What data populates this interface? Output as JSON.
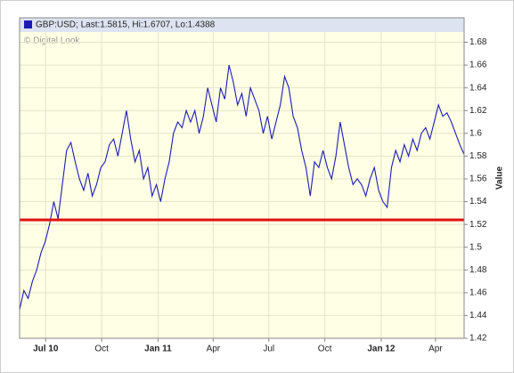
{
  "chart_data": {
    "type": "line",
    "legend": "GBP:USD; Last:1.5815, Hi:1.6707, Lo:1.4388",
    "watermark": "© Digital Look",
    "y_label": "Value",
    "series": [
      {
        "name": "GBP:USD",
        "color": "#1c1cb4",
        "values": [
          1.445,
          1.462,
          1.455,
          1.47,
          1.48,
          1.495,
          1.505,
          1.52,
          1.54,
          1.525,
          1.555,
          1.585,
          1.592,
          1.575,
          1.56,
          1.55,
          1.565,
          1.545,
          1.555,
          1.57,
          1.575,
          1.59,
          1.595,
          1.58,
          1.6,
          1.62,
          1.595,
          1.575,
          1.585,
          1.56,
          1.57,
          1.545,
          1.555,
          1.54,
          1.56,
          1.575,
          1.6,
          1.61,
          1.605,
          1.62,
          1.61,
          1.62,
          1.6,
          1.615,
          1.64,
          1.625,
          1.61,
          1.64,
          1.63,
          1.66,
          1.645,
          1.625,
          1.635,
          1.615,
          1.64,
          1.63,
          1.62,
          1.6,
          1.615,
          1.595,
          1.61,
          1.625,
          1.65,
          1.64,
          1.615,
          1.605,
          1.585,
          1.57,
          1.545,
          1.575,
          1.57,
          1.585,
          1.57,
          1.56,
          1.58,
          1.61,
          1.59,
          1.57,
          1.555,
          1.56,
          1.555,
          1.545,
          1.56,
          1.57,
          1.55,
          1.54,
          1.535,
          1.57,
          1.585,
          1.575,
          1.59,
          1.58,
          1.595,
          1.585,
          1.6,
          1.605,
          1.595,
          1.61,
          1.625,
          1.615,
          1.618,
          1.61,
          1.6,
          1.59,
          1.5815
        ]
      }
    ],
    "reference_line": {
      "value": 1.524,
      "color": "#e01010"
    },
    "xlim": [
      0,
      104
    ],
    "xticks": [
      {
        "value": 6.1,
        "label": "Jul 10"
      },
      {
        "value": 19.2,
        "label": "Oct"
      },
      {
        "value": 32.4,
        "label": "Jan 11"
      },
      {
        "value": 45.3,
        "label": "Apr"
      },
      {
        "value": 58.3,
        "label": "Jul"
      },
      {
        "value": 71.4,
        "label": "Oct"
      },
      {
        "value": 84.6,
        "label": "Jan 12"
      },
      {
        "value": 97.3,
        "label": "Apr"
      }
    ],
    "ylim": [
      1.42,
      1.689
    ],
    "yticks": [
      1.42,
      1.44,
      1.46,
      1.48,
      1.5,
      1.52,
      1.54,
      1.56,
      1.58,
      1.6,
      1.62,
      1.64,
      1.66,
      1.68
    ],
    "grid": true
  }
}
